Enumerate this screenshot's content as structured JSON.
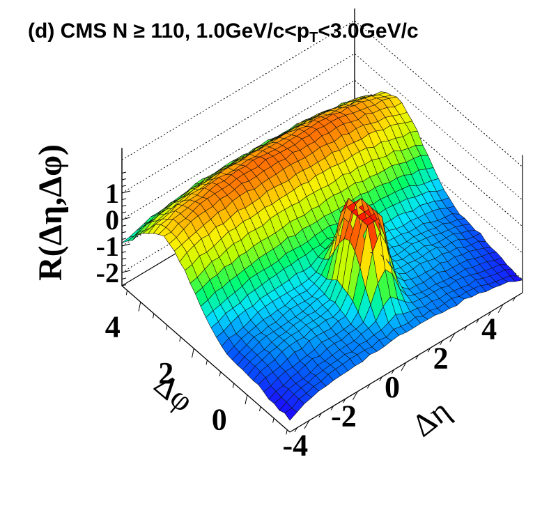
{
  "title": {
    "panel": "(d)",
    "text": "CMS N ≥ 110, 1.0GeV/c<p",
    "sub": "T",
    "tail": "<3.0GeV/c"
  },
  "chart_data": {
    "type": "surface3d",
    "title": "(d) CMS N ≥ 110, 1.0GeV/c<pT<3.0GeV/c",
    "xlabel": "Δη",
    "ylabel": "Δφ",
    "zlabel": "R(Δη,Δφ)",
    "x_range": [
      -4.8,
      4.8
    ],
    "y_range": [
      -1.6,
      4.7
    ],
    "z_range": [
      -2.5,
      1.8
    ],
    "x_ticks": [
      "-4",
      "-2",
      "0",
      "2",
      "4"
    ],
    "x_tick_values": [
      -4,
      -2,
      0,
      2,
      4
    ],
    "y_ticks": [
      "0",
      "2",
      "4"
    ],
    "y_tick_values": [
      0,
      2,
      4
    ],
    "z_ticks": [
      "-2",
      "-1",
      "0",
      "1"
    ],
    "z_tick_values": [
      -2,
      -1,
      0,
      1
    ],
    "x_bins": 32,
    "y_bins": 32,
    "features": {
      "away_side_ridge": {
        "phi": 3.14,
        "peak_value": 1.3,
        "description_values": {
          "baseline": -1.4,
          "eta_edge_drop": 0.6
        }
      },
      "near_side_peak": {
        "eta": 0.0,
        "phi": 0.0,
        "clipped_max": 1.8
      },
      "near_side_ridge_level": -0.9,
      "minimum_level": -2.0
    },
    "colormap": [
      "#1f00ff",
      "#0066ff",
      "#00e5ff",
      "#00ff66",
      "#b8ff00",
      "#ffee00",
      "#ff7f00",
      "#ff1a00"
    ],
    "grid": false
  }
}
